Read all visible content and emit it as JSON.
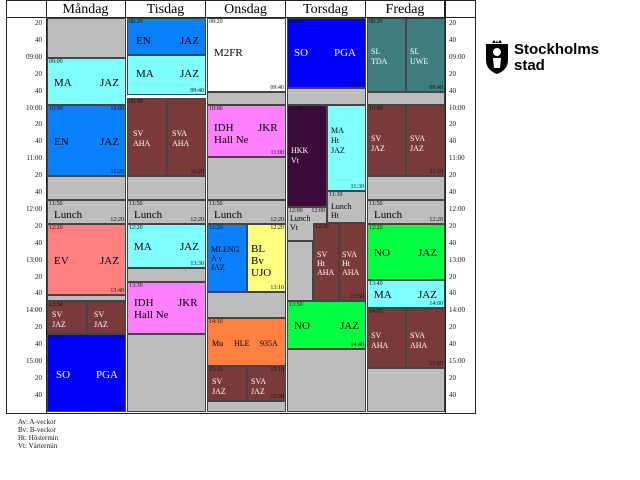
{
  "days": [
    "Måndag",
    "Tisdag",
    "Onsdag",
    "Torsdag",
    "Fredag"
  ],
  "time_ticks": [
    "20",
    "40",
    "09:00",
    "20",
    "40",
    "10:00",
    "20",
    "40",
    "11:00",
    "20",
    "40",
    "12:00",
    "20",
    "40",
    "13:00",
    "20",
    "40",
    "14:00",
    "20",
    "40",
    "15:00",
    "20",
    "40"
  ],
  "logo": {
    "text_line1": "Stockholms",
    "text_line2": "stad"
  },
  "legend": [
    "Av:  A-veckor",
    "Bv:  B-veckor",
    "Ht:  Höstermin",
    "Vt:  Vårtermin"
  ],
  "colors": {
    "cyan": "#80ffff",
    "blue": "#0a7ef0",
    "maroon": "#7a3a3a",
    "magenta": "#ff80ff",
    "darkpurple": "#3a0a3a",
    "green": "#00ff40",
    "teal": "#3e7e7e",
    "red": "#ff8080",
    "orange": "#ff8040",
    "yellow": "#ffff80",
    "sky": "#0a80ff",
    "gray": "#bdbdbd",
    "royal": "#0000ff"
  },
  "blocks": {
    "mon_ma": {
      "l1": "MA",
      "l2": "JAZ",
      "start": "09:00"
    },
    "mon_en": {
      "l1": "EN",
      "l2": "JAZ",
      "start": "10:00",
      "end": "11:20"
    },
    "mon_lunch": {
      "l1": "Lunch",
      "start": "11:50",
      "end": "12:20"
    },
    "mon_ev": {
      "l1": "EV",
      "l2": "JAZ",
      "start": "12:20",
      "end": "13:40"
    },
    "mon_sv": {
      "l1": "SV",
      "l2": "JAZ",
      "start": "13:50"
    },
    "mon_sva": {
      "l1": "SV",
      "l2": "JAZ"
    },
    "mon_so": {
      "l1": "SO",
      "l2": "PGA",
      "start": "14:30",
      "end": "14:30",
      "end2": "16:00"
    },
    "tue_en": {
      "l1": "EN",
      "l2": "JAZ",
      "start": "08:20"
    },
    "tue_ma": {
      "l1": "MA",
      "l2": "JAZ",
      "end": "09:40"
    },
    "tue_sv": {
      "l1": "SV",
      "l2": "AHA",
      "start": "09:50"
    },
    "tue_sva": {
      "l1": "SVA",
      "l2": "AHA",
      "end": "11:20"
    },
    "tue_lunch": {
      "l1": "Lunch",
      "start": "11:50",
      "end": "12:20"
    },
    "tue_ma2": {
      "l1": "MA",
      "l2": "JAZ",
      "start": "12:20",
      "end": "13:30"
    },
    "tue_idh": {
      "l1": "IDH",
      "l2": "JKR",
      "l3": "Hall Ne",
      "start": "13:30"
    },
    "wed_m2fr": {
      "l1": "M2FR",
      "start": "08:20",
      "end": "09:40"
    },
    "wed_idh": {
      "l1": "IDH",
      "l2": "JKR",
      "l3": "Hall Ne",
      "start": "10:00",
      "end": "11:00"
    },
    "wed_lunch": {
      "l1": "Lunch",
      "start": "11:50",
      "end": "12:20"
    },
    "wed_mleng": {
      "l1": "MLENG",
      "l2": "A v",
      "l3": "JAZ",
      "start": "12:20"
    },
    "wed_bl": {
      "l1": "BL",
      "l2": "Bv",
      "l3": "UJO",
      "start": "12:20",
      "end": "13:10"
    },
    "wed_mu": {
      "l1": "Mu",
      "l2": "HLE",
      "l3": "935A",
      "start": "14:10"
    },
    "wed_sv": {
      "l1": "SV",
      "l2": "JAZ",
      "start": "15:10"
    },
    "wed_sva": {
      "l1": "SVA",
      "l2": "JAZ",
      "start": "15:10",
      "end": "15:30"
    },
    "thu_so": {
      "l1": "SO",
      "l2": "PGA",
      "start": "08:20",
      "end": "09:30"
    },
    "thu_hkk": {
      "l1": "HKK",
      "l2": "Vt",
      "start": "10:00"
    },
    "thu_ma": {
      "l1": "MA",
      "l2": "Ht",
      "l3": "JAZ",
      "end": "11:30"
    },
    "thu_lunch_vt": {
      "l1": "Lunch",
      "l2": "Vt",
      "t1": "12:00",
      "t2": "12:00"
    },
    "thu_lunch_ht": {
      "l1": "Lunch",
      "l2": "Ht",
      "t1": "11:30"
    },
    "thu_sv": {
      "l1": "SV",
      "l2": "Ht",
      "l3": "AHA",
      "start": "12:30"
    },
    "thu_sva": {
      "l1": "SVA",
      "l2": "Ht",
      "l3": "AHA",
      "end": "13:50"
    },
    "thu_no": {
      "l1": "NO",
      "l2": "JAZ",
      "start": "13:50",
      "end": "14:40"
    },
    "fri_sl": {
      "l1": "SL",
      "l2": "TDA",
      "start": "08:20"
    },
    "fri_sl2": {
      "l1": "SL",
      "l2": "UWE",
      "end": "09:40"
    },
    "fri_sv": {
      "l1": "SV",
      "l2": "JAZ",
      "start": "10:00"
    },
    "fri_sva": {
      "l1": "SVA",
      "l2": "JAZ",
      "end": "11:20"
    },
    "fri_lunch": {
      "l1": "Lunch",
      "start": "11:50",
      "end": "12:20"
    },
    "fri_no": {
      "l1": "NO",
      "l2": "JAZ",
      "start": "12:20"
    },
    "fri_ma": {
      "l1": "MA",
      "l2": "JAZ",
      "start": "13:40",
      "end": "14:00"
    },
    "fri_sv2": {
      "l1": "SV",
      "l2": "AHA",
      "start": "14:05"
    },
    "fri_sva2": {
      "l1": "SVA",
      "l2": "AHA",
      "end": "15:05"
    }
  }
}
